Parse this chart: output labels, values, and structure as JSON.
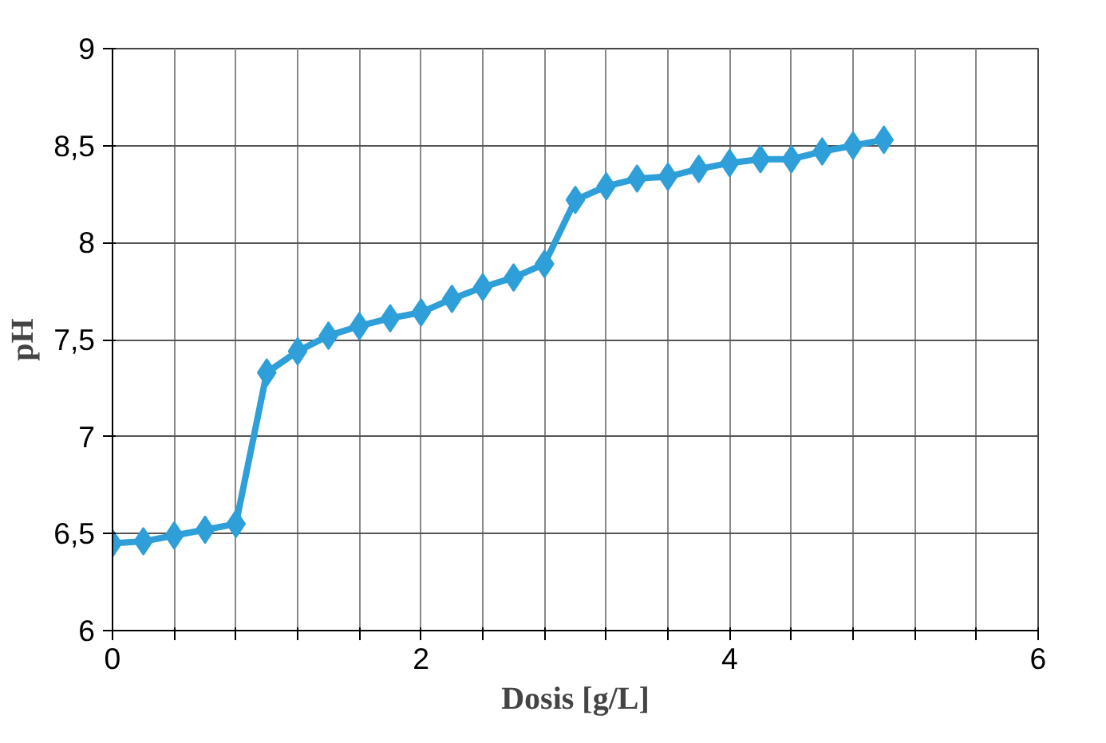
{
  "chart_data": {
    "type": "line",
    "xlabel": "Dosis [g/L]",
    "ylabel": "pH",
    "x": [
      0,
      0.2,
      0.4,
      0.6,
      0.8,
      1.0,
      1.2,
      1.4,
      1.6,
      1.8,
      2.0,
      2.2,
      2.4,
      2.6,
      2.8,
      3.0,
      3.2,
      3.4,
      3.6,
      3.8,
      4.0,
      4.2,
      4.4,
      4.6,
      4.8,
      5.0
    ],
    "series": [
      {
        "color": "#2e9fd8",
        "values": [
          6.45,
          6.46,
          6.49,
          6.52,
          6.55,
          7.33,
          7.44,
          7.52,
          7.57,
          7.61,
          7.64,
          7.71,
          7.77,
          7.82,
          7.89,
          8.22,
          8.29,
          8.33,
          8.34,
          8.38,
          8.41,
          8.43,
          8.43,
          8.47,
          8.5,
          8.53
        ]
      }
    ],
    "xlim": [
      0,
      6
    ],
    "ylim": [
      6,
      9
    ],
    "xticks": [
      0,
      {
        "value": 0.4,
        "label": null
      },
      {
        "value": 0.8,
        "label": null
      },
      {
        "value": 1.2,
        "label": null
      },
      {
        "value": 1.6,
        "label": null
      },
      2,
      {
        "value": 2.4,
        "label": null
      },
      {
        "value": 2.8,
        "label": null
      },
      {
        "value": 3.2,
        "label": null
      },
      {
        "value": 3.6,
        "label": null
      },
      4,
      {
        "value": 4.4,
        "label": null
      },
      {
        "value": 4.8,
        "label": null
      },
      {
        "value": 5.2,
        "label": null
      },
      {
        "value": 5.6,
        "label": null
      },
      6
    ],
    "yticks": [
      6,
      {
        "value": 6.5,
        "label": "6,5"
      },
      7,
      {
        "value": 7.5,
        "label": "7,5"
      },
      8,
      {
        "value": 8.5,
        "label": "8,5"
      },
      9
    ],
    "grid": true,
    "marker": "diamond",
    "line_style": "solid"
  }
}
